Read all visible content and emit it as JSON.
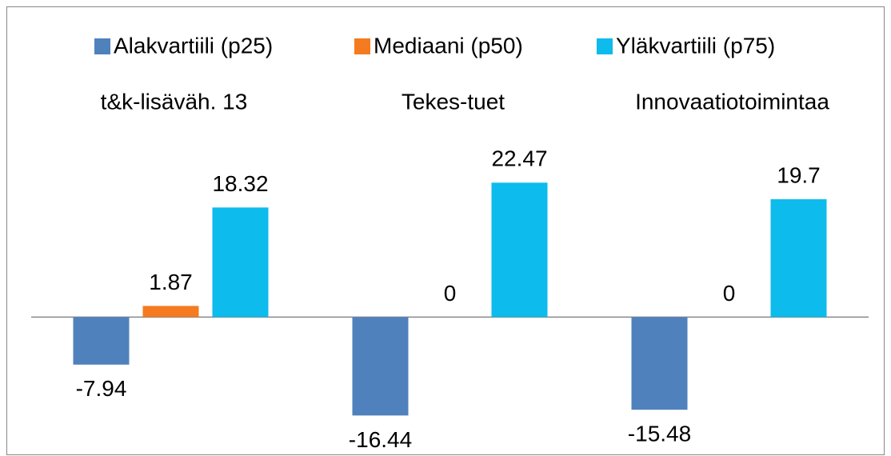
{
  "chart_data": {
    "type": "bar",
    "categories": [
      "t&k-lisäväh. 13",
      "Tekes-tuet",
      "Innovaatiotoimintaa"
    ],
    "series": [
      {
        "name": "Alakvartiili (p25)",
        "color": "#4f81bd",
        "values": [
          -7.94,
          -16.44,
          -15.48
        ]
      },
      {
        "name": "Mediaani (p50)",
        "color": "#f47b20",
        "values": [
          1.87,
          0,
          0
        ]
      },
      {
        "name": "Yläkvartiili (p75)",
        "color": "#0dbbec",
        "values": [
          18.32,
          22.47,
          19.7
        ]
      }
    ],
    "ylim": [
      -20,
      30
    ]
  }
}
